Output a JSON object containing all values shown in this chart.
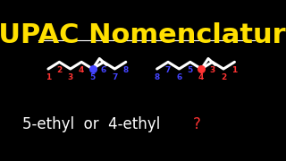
{
  "bg_color": "#000000",
  "title": "IUPAC Nomenclature",
  "title_color": "#FFE000",
  "title_fontsize": 22,
  "subtitle_color": "#FFFFFF",
  "question_mark_color": "#FF3333",
  "chain_color": "#FFFFFF",
  "highlight_blue": "#4444FF",
  "highlight_red": "#FF3333",
  "line_width": 2.2,
  "num_labels_left": [
    "1",
    "2",
    "3",
    "4",
    "5",
    "6",
    "7",
    "8"
  ],
  "num_labels_right": [
    "8",
    "7",
    "6",
    "5",
    "4",
    "3",
    "2",
    "1"
  ]
}
